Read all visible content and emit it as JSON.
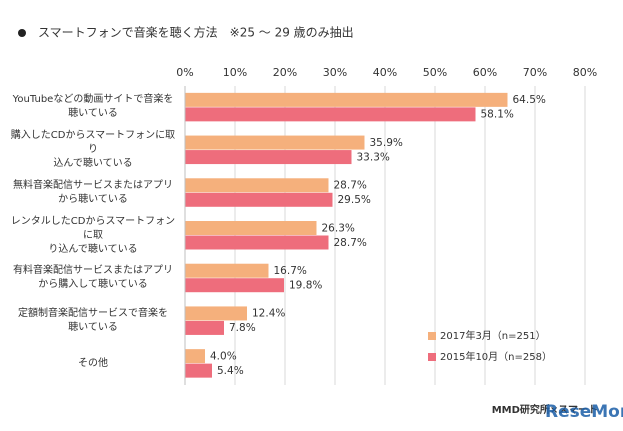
{
  "chart_data": {
    "type": "bar",
    "orientation": "horizontal",
    "title": "スマートフォンで音楽を聴く方法　※25 ～ 29 歳のみ抽出",
    "categories": [
      "YouTubeなどの動画サイトで音楽を\n聴いている",
      "購入したCDからスマートフォンに取り\n込んで聴いている",
      "無料音楽配信サービスまたはアプリ\nから聴いている",
      "レンタルしたCDからスマートフォンに取\nり込んで聴いている",
      "有料音楽配信サービスまたはアプリ\nから購入して聴いている",
      "定額制音楽配信サービスで音楽を\n聴いている",
      "その他"
    ],
    "series": [
      {
        "name": "2017年3月（n=251）",
        "color": "#f5b07c",
        "values": [
          64.5,
          35.9,
          28.7,
          26.3,
          16.7,
          12.4,
          4.0
        ],
        "value_labels": [
          "64.5%",
          "35.9%",
          "28.7%",
          "26.3%",
          "16.7%",
          "12.4%",
          "4.0%"
        ]
      },
      {
        "name": "2015年10月（n=258）",
        "color": "#ee6d7c",
        "values": [
          58.1,
          33.3,
          29.5,
          28.7,
          19.8,
          7.8,
          5.4
        ],
        "value_labels": [
          "58.1%",
          "33.3%",
          "29.5%",
          "28.7%",
          "19.8%",
          "7.8%",
          "5.4%"
        ]
      }
    ],
    "xlim": [
      0,
      80
    ],
    "xticks": [
      {
        "value": 0,
        "label": "0%"
      },
      {
        "value": 10,
        "label": "10%"
      },
      {
        "value": 20,
        "label": "20%"
      },
      {
        "value": 30,
        "label": "30%"
      },
      {
        "value": 40,
        "label": "40%"
      },
      {
        "value": 50,
        "label": "50%"
      },
      {
        "value": 60,
        "label": "60%"
      },
      {
        "value": 70,
        "label": "70%"
      },
      {
        "value": 80,
        "label": "80%"
      }
    ],
    "grid": true,
    "legend": "lower right",
    "source": "MMD研究所×スマート",
    "watermark": "ReseMom"
  }
}
